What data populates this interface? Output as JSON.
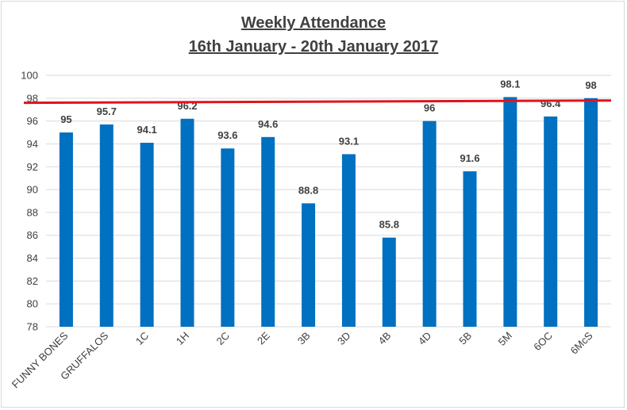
{
  "chart_data": {
    "type": "bar",
    "title": "Weekly Attendance",
    "subtitle": "16th January - 20th January 2017",
    "xlabel": "",
    "ylabel": "",
    "ylim": [
      78,
      100
    ],
    "yticks": [
      78,
      80,
      82,
      84,
      86,
      88,
      90,
      92,
      94,
      96,
      98,
      100
    ],
    "grid": true,
    "legend": "none",
    "categories": [
      "FUNNY BONES",
      "GRUFFALOS",
      "1C",
      "1H",
      "2C",
      "2E",
      "3B",
      "3D",
      "4B",
      "4D",
      "5B",
      "5M",
      "6OC",
      "6McS"
    ],
    "values": [
      95,
      95.7,
      94.1,
      96.2,
      93.6,
      94.6,
      88.8,
      93.1,
      85.8,
      96,
      91.6,
      98.1,
      96.4,
      98
    ],
    "data_labels": [
      "95",
      "95.7",
      "94.1",
      "96.2",
      "93.6",
      "94.6",
      "88.8",
      "93.1",
      "85.8",
      "96",
      "91.6",
      "98.1",
      "96.4",
      "98"
    ],
    "reference_line": {
      "start": 97.6,
      "end": 97.8,
      "color": "#e0141e"
    },
    "bar_color": "#0070c0",
    "grid_color": "#d9d9d9",
    "text_color": "#404040"
  }
}
